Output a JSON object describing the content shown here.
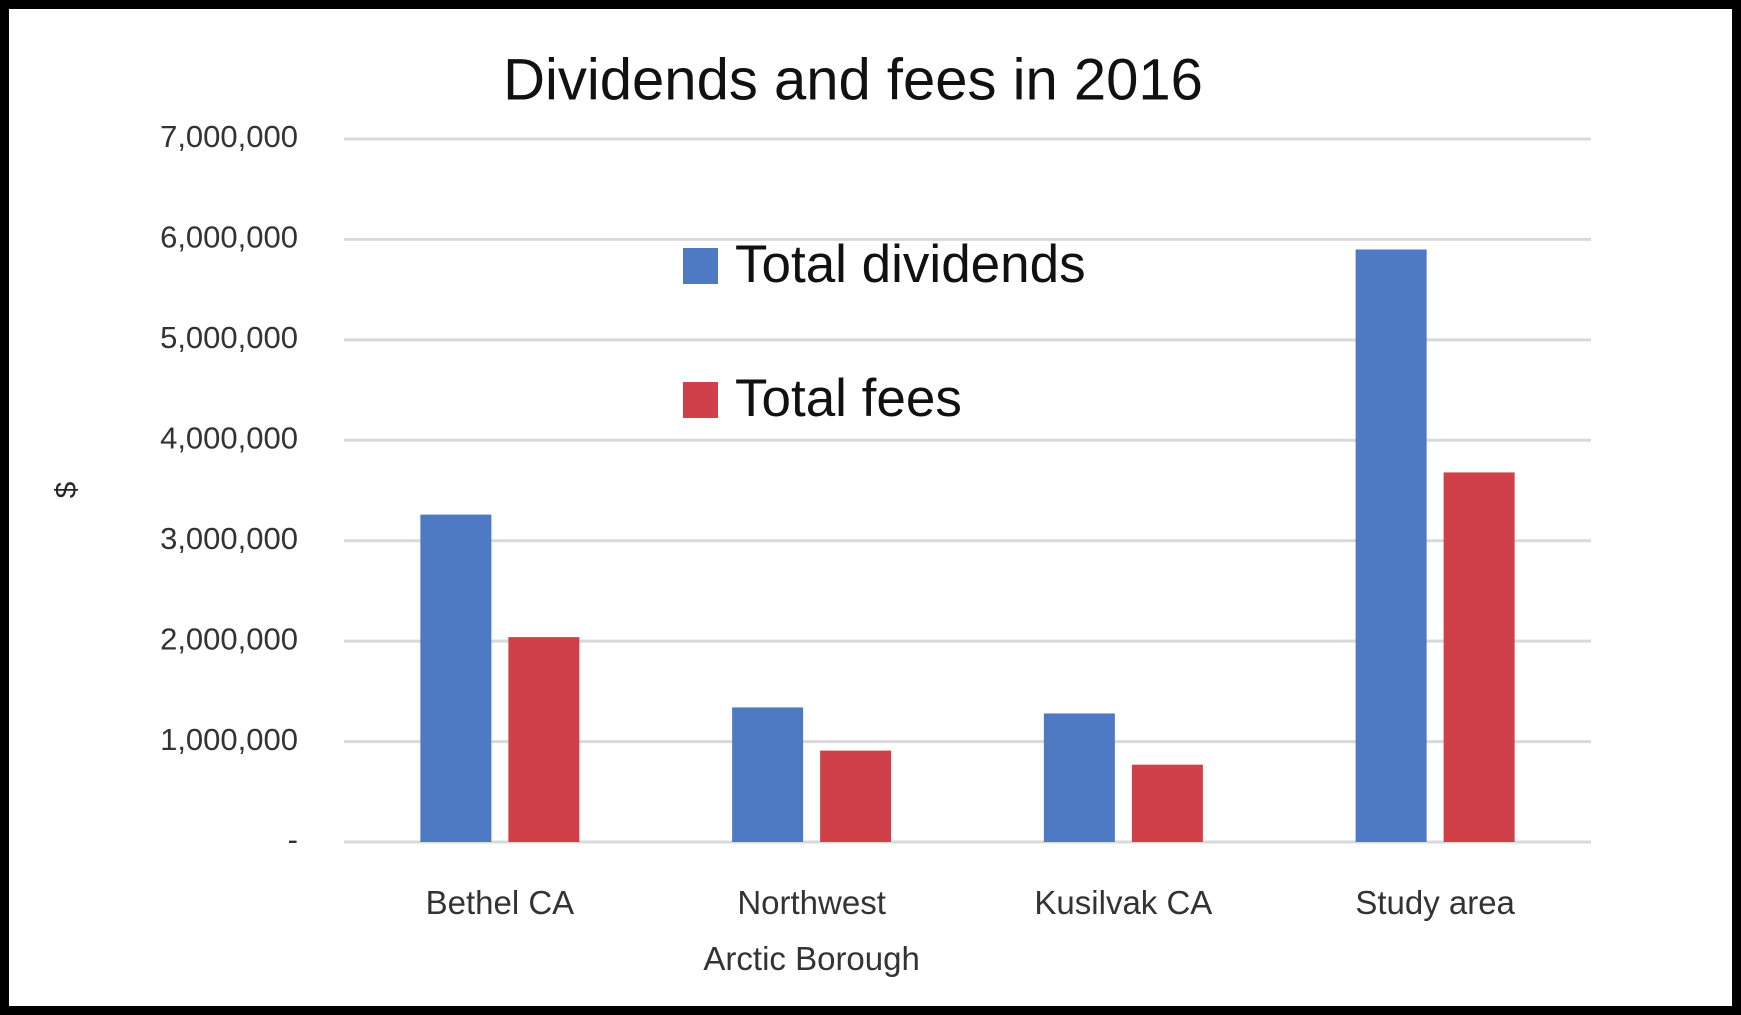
{
  "chart_data": {
    "type": "bar",
    "title": "Dividends and fees in 2016",
    "y_label": "$",
    "categories": [
      "Bethel CA",
      "Northwest Arctic Borough",
      "Kusilvak  CA",
      "Study area"
    ],
    "series": [
      {
        "name": "Total dividends",
        "color": "#4e7ac4",
        "values": [
          3260000,
          1340000,
          1280000,
          5900000
        ]
      },
      {
        "name": "Total fees",
        "color": "#cf4049",
        "values": [
          2040000,
          910000,
          770000,
          3680000
        ]
      }
    ],
    "ylim": [
      0,
      7000000
    ],
    "yticks": [
      {
        "value": 0,
        "label": "-"
      },
      {
        "value": 1000000,
        "label": "1,000,000"
      },
      {
        "value": 2000000,
        "label": "2,000,000"
      },
      {
        "value": 3000000,
        "label": "3,000,000"
      },
      {
        "value": 4000000,
        "label": "4,000,000"
      },
      {
        "value": 5000000,
        "label": "5,000,000"
      },
      {
        "value": 6000000,
        "label": "6,000,000"
      },
      {
        "value": 7000000,
        "label": "7,000,000"
      }
    ],
    "grid": true
  }
}
